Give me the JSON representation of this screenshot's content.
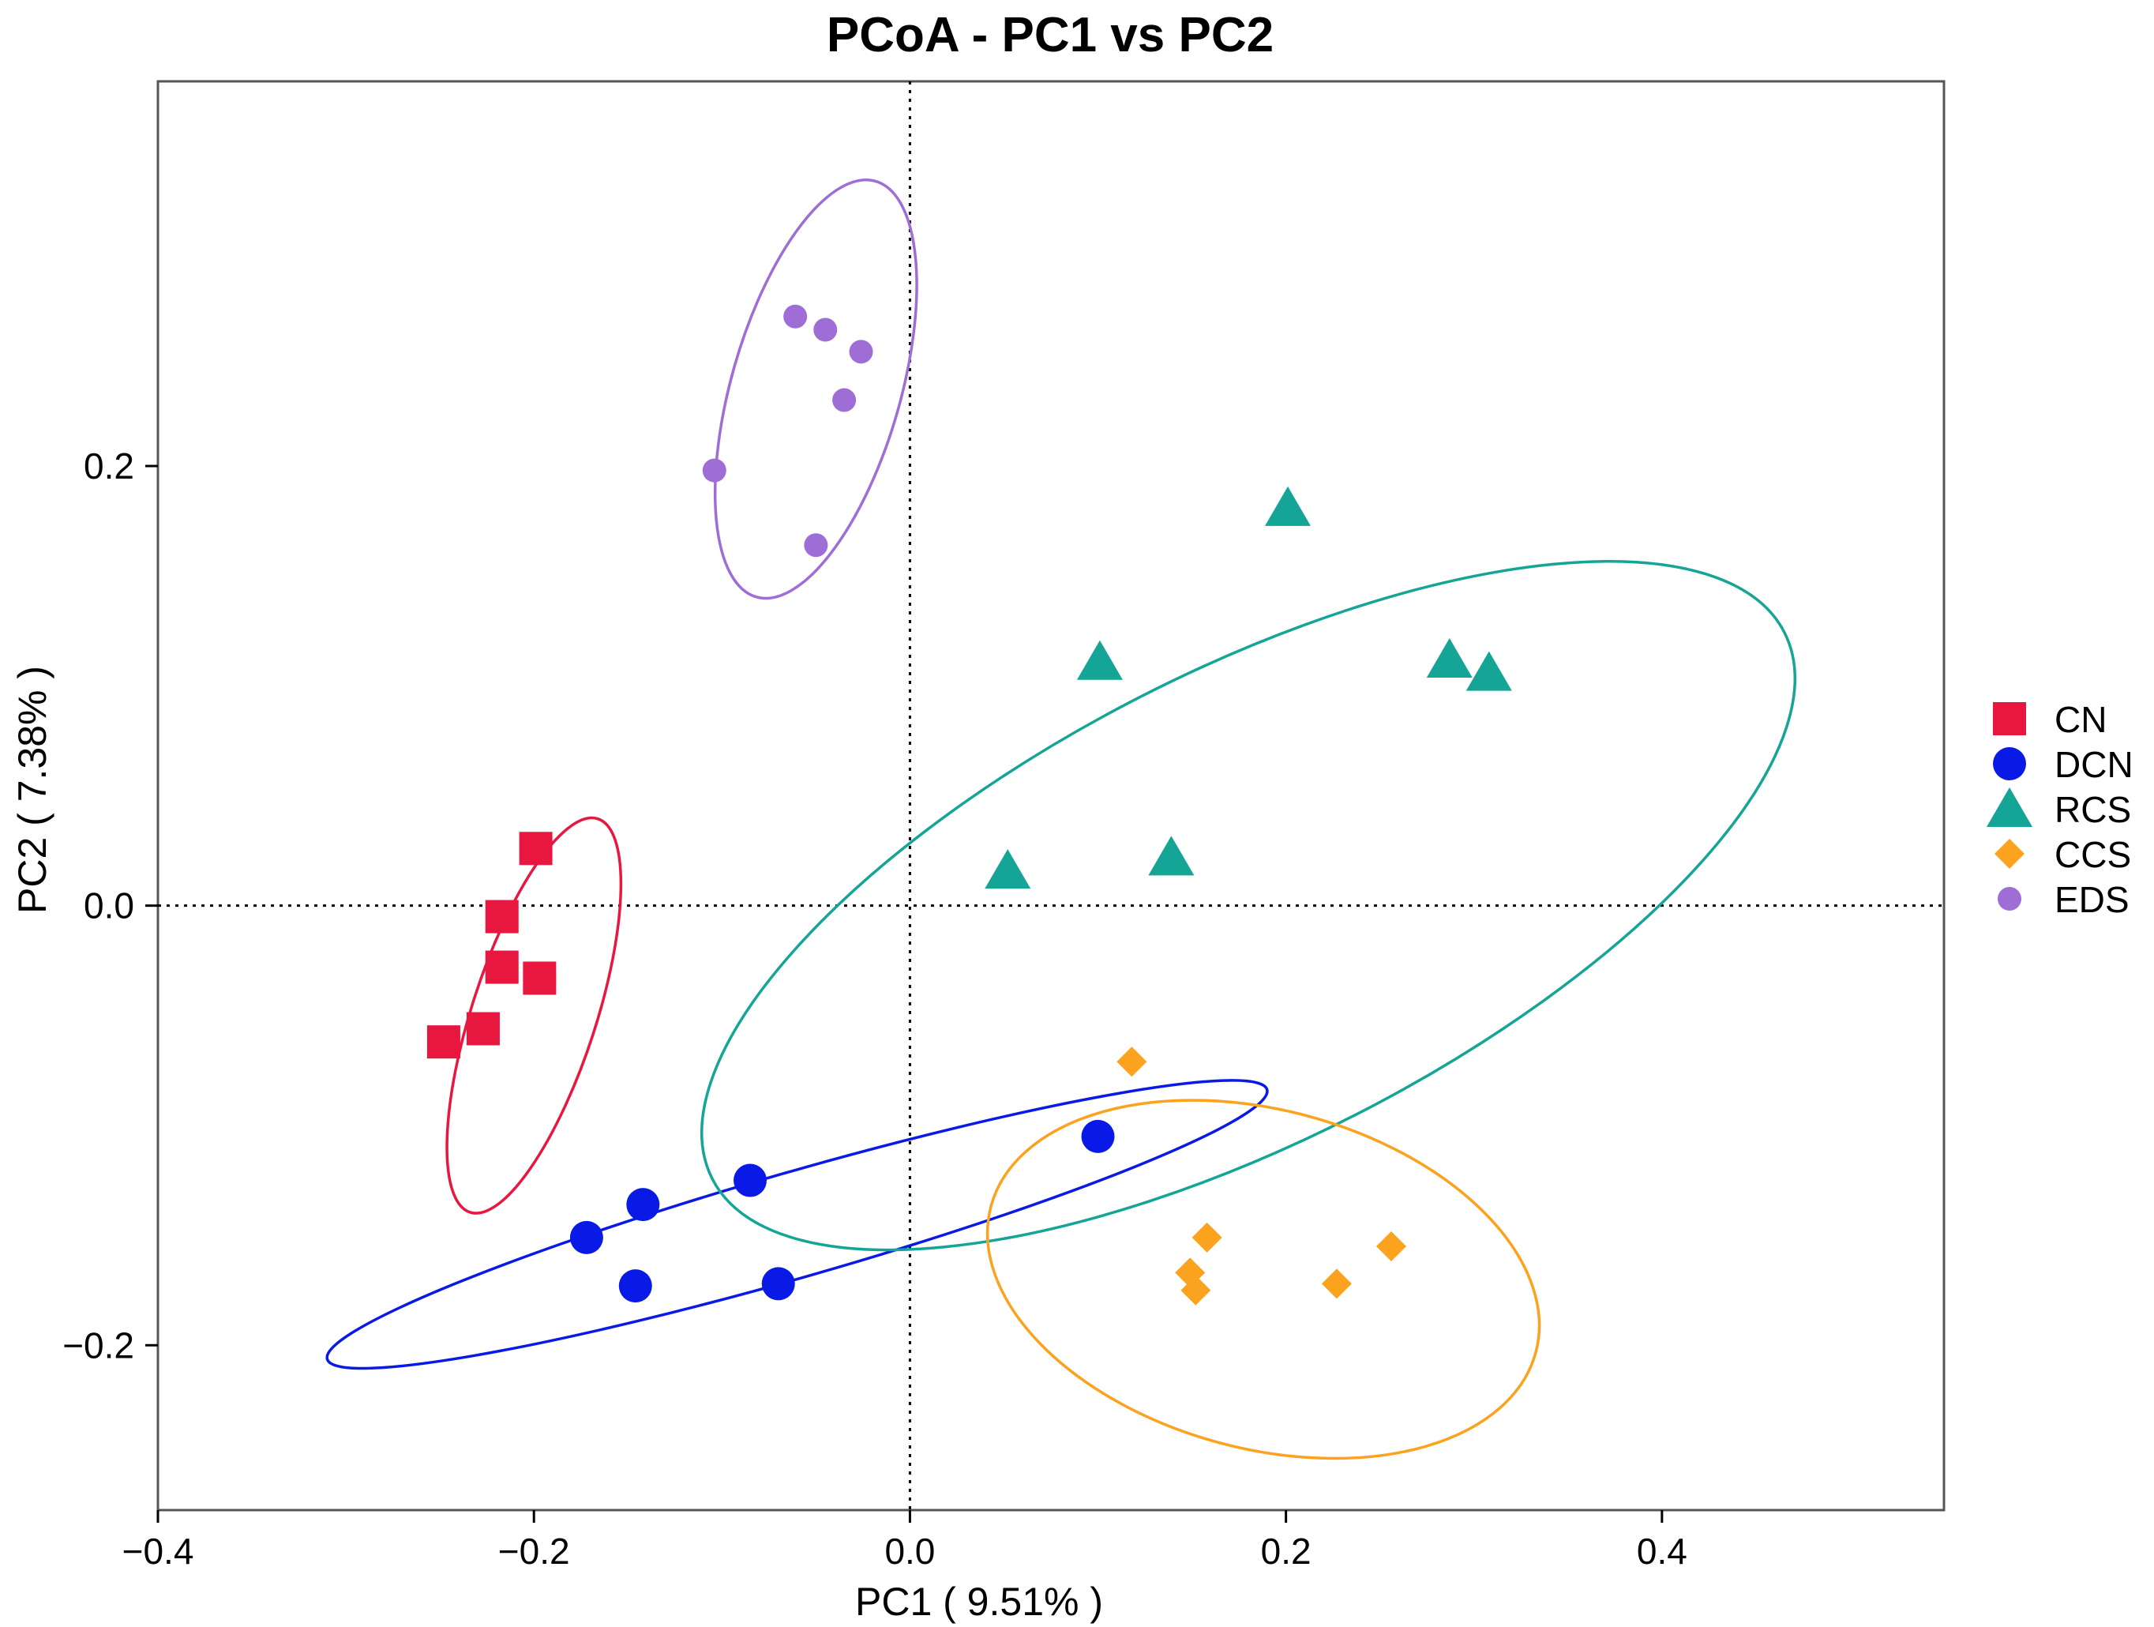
{
  "chart_data": {
    "type": "scatter",
    "title": "PCoA - PC1 vs PC2",
    "xlabel": "PC1 ( 9.51% )",
    "ylabel": "PC2 ( 7.38% )",
    "xlim": [
      -0.4,
      0.55
    ],
    "ylim": [
      -0.275,
      0.375
    ],
    "xticks": [
      -0.4,
      -0.2,
      0.0,
      0.2,
      0.4
    ],
    "xtick_labels": [
      "−0.4",
      "−0.2",
      "0.0",
      "0.2",
      "0.4"
    ],
    "yticks": [
      -0.2,
      0.0,
      0.2
    ],
    "ytick_labels": [
      "−0.2",
      "0.0",
      "0.2"
    ],
    "grid": false,
    "reference_lines": {
      "x": 0,
      "y": 0,
      "style": "dotted"
    },
    "legend_position": "right",
    "series": [
      {
        "name": "CN",
        "marker": "square",
        "color": "#e8173f",
        "points": [
          [
            -0.199,
            0.026
          ],
          [
            -0.217,
            -0.005
          ],
          [
            -0.217,
            -0.028
          ],
          [
            -0.197,
            -0.033
          ],
          [
            -0.227,
            -0.056
          ],
          [
            -0.248,
            -0.062
          ]
        ],
        "ellipse": {
          "center": [
            -0.2,
            -0.05
          ],
          "rx_data": 0.11,
          "ry_data": 0.033,
          "angle_deg": 72
        }
      },
      {
        "name": "DCN",
        "marker": "circle",
        "color": "#0a1ae6",
        "points": [
          [
            0.1,
            -0.105
          ],
          [
            -0.085,
            -0.125
          ],
          [
            -0.142,
            -0.136
          ],
          [
            -0.172,
            -0.151
          ],
          [
            -0.146,
            -0.173
          ],
          [
            -0.07,
            -0.172
          ]
        ],
        "ellipse": {
          "center": [
            -0.06,
            -0.145
          ],
          "rx_data": 0.26,
          "ry_data": 0.028,
          "angle_deg": 16
        }
      },
      {
        "name": "RCS",
        "marker": "triangle",
        "color": "#14a597",
        "points": [
          [
            0.201,
            0.181
          ],
          [
            0.101,
            0.111
          ],
          [
            0.287,
            0.112
          ],
          [
            0.308,
            0.106
          ],
          [
            0.139,
            0.022
          ],
          [
            0.052,
            0.016
          ]
        ],
        "ellipse": {
          "center": [
            0.18,
            0.0
          ],
          "rx_data": 0.32,
          "ry_data": 0.125,
          "angle_deg": 27
        }
      },
      {
        "name": "CCS",
        "marker": "diamond",
        "color": "#fba21f",
        "points": [
          [
            0.118,
            -0.071
          ],
          [
            0.158,
            -0.151
          ],
          [
            0.256,
            -0.155
          ],
          [
            0.149,
            -0.167
          ],
          [
            0.152,
            -0.175
          ],
          [
            0.227,
            -0.172
          ]
        ],
        "ellipse": {
          "center": [
            0.188,
            -0.17
          ],
          "rx_data": 0.15,
          "ry_data": 0.09,
          "angle_deg": -15
        }
      },
      {
        "name": "EDS",
        "marker": "circle-small",
        "color": "#9f6dd6",
        "points": [
          [
            -0.061,
            0.268
          ],
          [
            -0.045,
            0.262
          ],
          [
            -0.026,
            0.252
          ],
          [
            -0.035,
            0.23
          ],
          [
            -0.104,
            0.198
          ],
          [
            -0.05,
            0.164
          ]
        ],
        "ellipse": {
          "center": [
            -0.05,
            0.235
          ],
          "rx_data": 0.115,
          "ry_data": 0.045,
          "angle_deg": 74
        }
      }
    ]
  }
}
